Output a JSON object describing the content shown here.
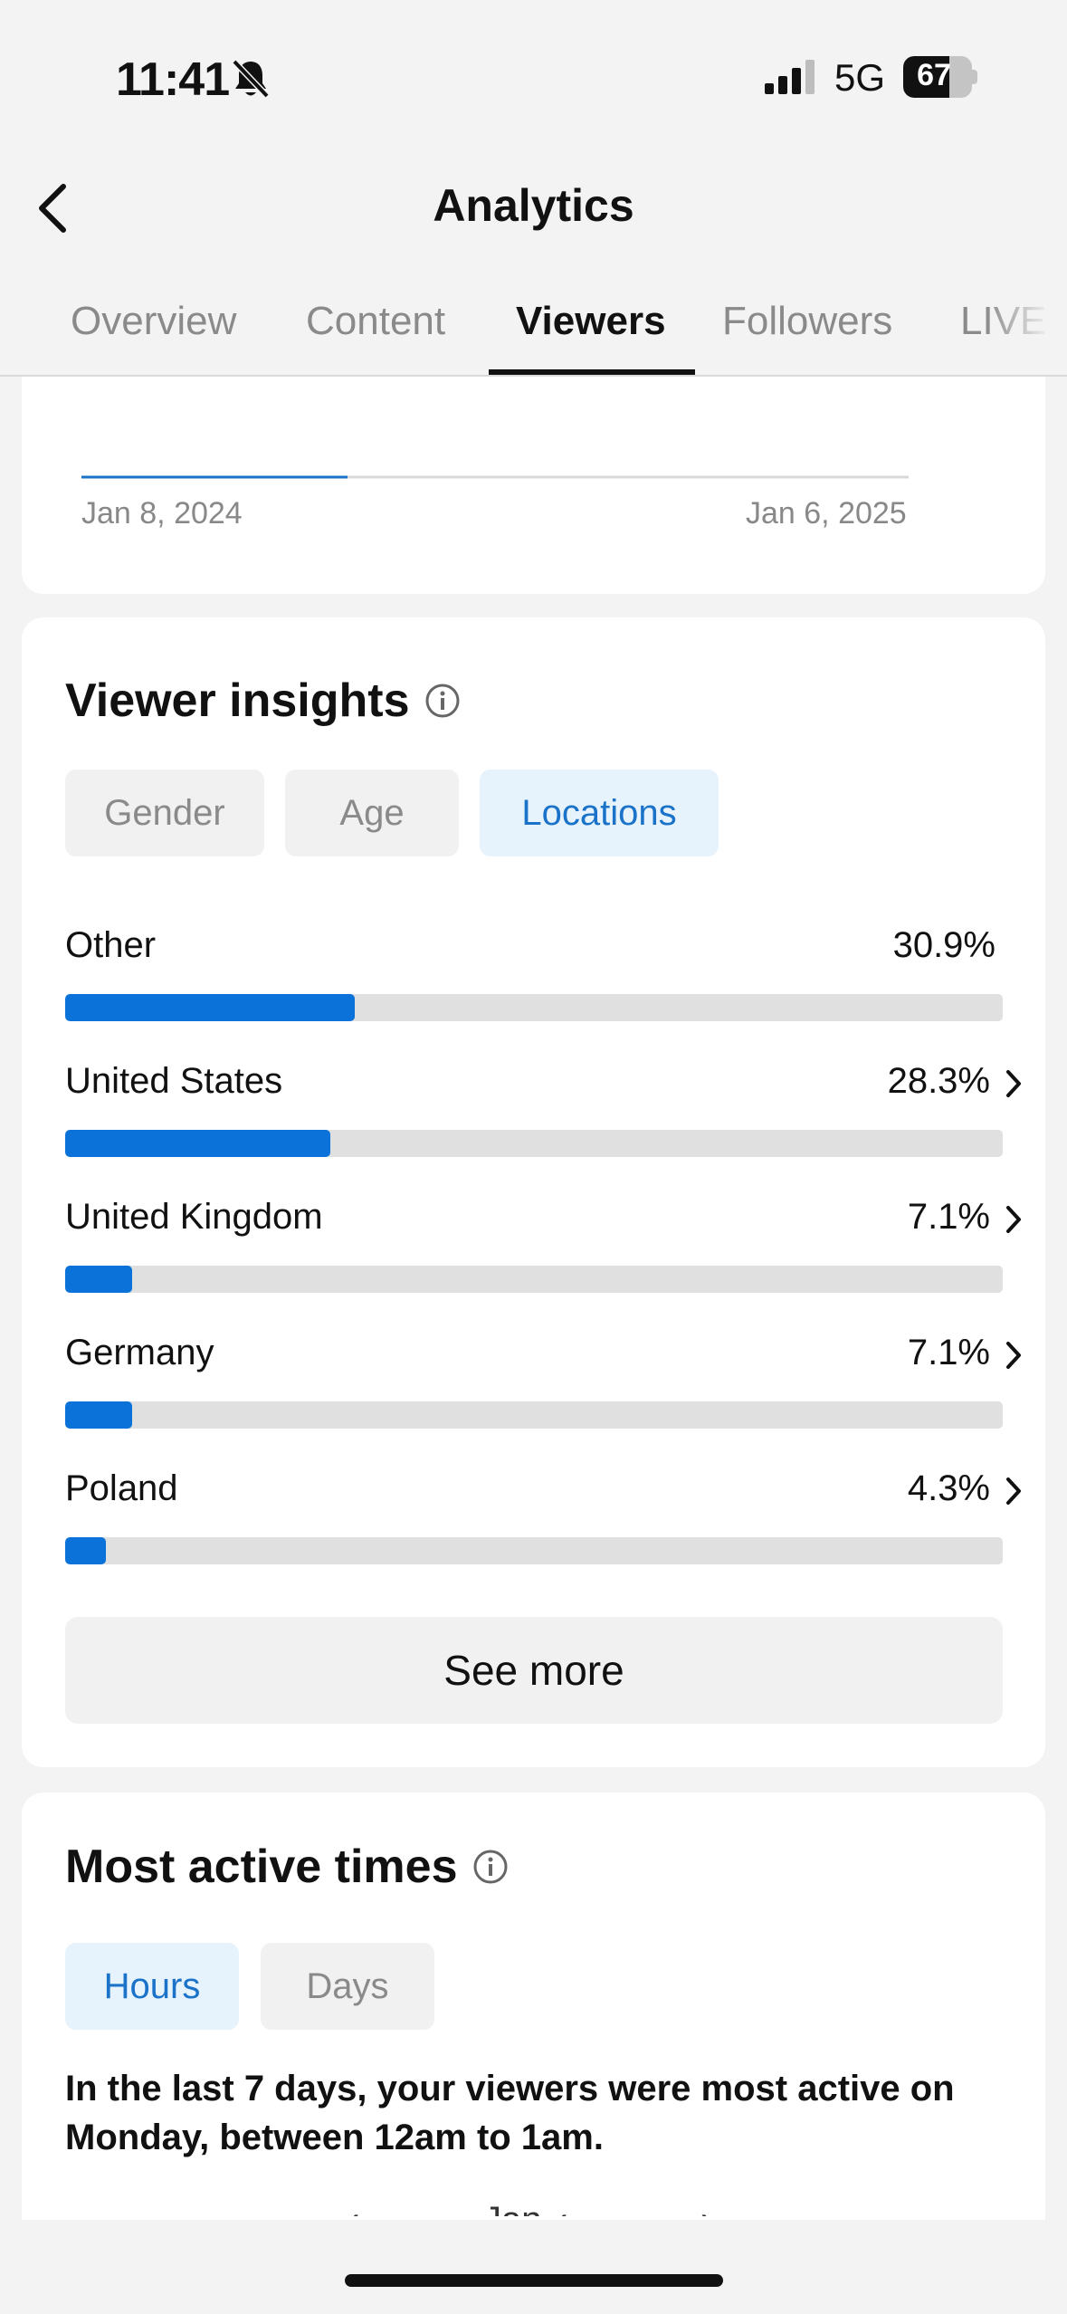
{
  "status_bar": {
    "time": "11:41",
    "network": "5G",
    "battery": "67",
    "battery_level": 0.67
  },
  "header": {
    "title": "Analytics"
  },
  "tabs": [
    {
      "label": "Overview"
    },
    {
      "label": "Content"
    },
    {
      "label": "Viewers"
    },
    {
      "label": "Followers"
    },
    {
      "label": "LIVE"
    }
  ],
  "chart": {
    "start_label": "Jan 8, 2024",
    "end_label": "Jan 6, 2025"
  },
  "viewer_insights": {
    "title": "Viewer insights",
    "filters": [
      "Gender",
      "Age",
      "Locations"
    ],
    "active_filter": "Locations",
    "locations": [
      {
        "name": "Other",
        "value": "30.9%",
        "percent": 30.9,
        "has_detail": false
      },
      {
        "name": "United States",
        "value": "28.3%",
        "percent": 28.3,
        "has_detail": true
      },
      {
        "name": "United Kingdom",
        "value": "7.1%",
        "percent": 7.1,
        "has_detail": true
      },
      {
        "name": "Germany",
        "value": "7.1%",
        "percent": 7.1,
        "has_detail": true
      },
      {
        "name": "Poland",
        "value": "4.3%",
        "percent": 4.3,
        "has_detail": true
      }
    ],
    "see_more": "See more"
  },
  "most_active_times": {
    "title": "Most active times",
    "filters": [
      "Hours",
      "Days"
    ],
    "active_filter": "Hours",
    "summary": "In the last 7 days, your viewers were most active on Monday, between 12am to 1am.",
    "nav_partial": "Jan"
  },
  "colors": {
    "accent": "#0a72d9",
    "chip_active_bg": "#e6f2fc",
    "chip_active_text": "#1a73c9"
  }
}
